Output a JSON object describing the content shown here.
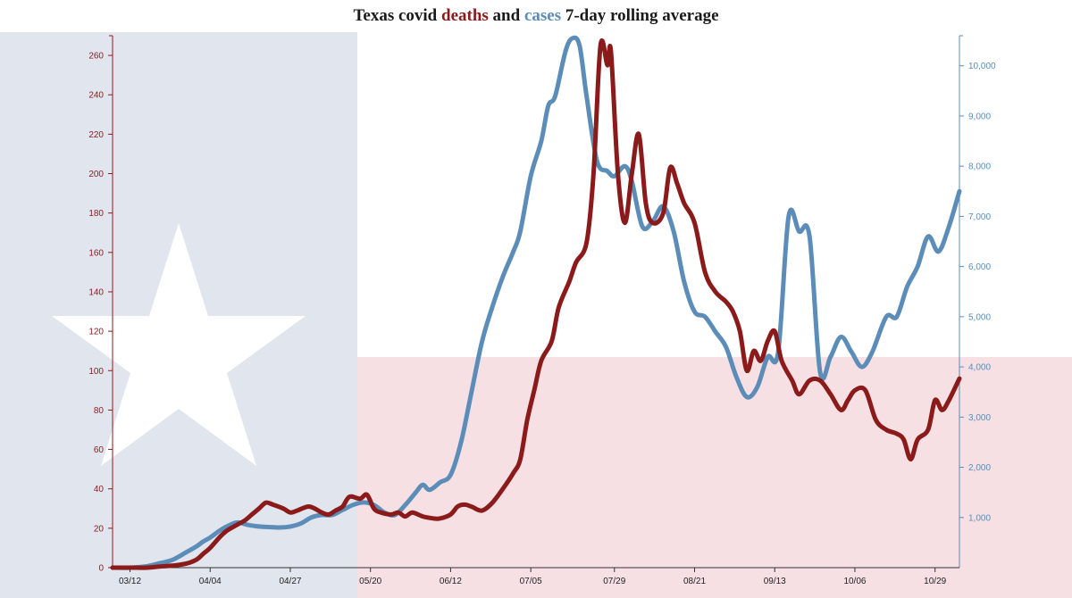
{
  "title": {
    "part1": "Texas covid ",
    "deaths_word": "deaths",
    "part2": " and ",
    "cases_word": "cases",
    "part3": " 7-day rolling average"
  },
  "colors": {
    "deaths": "#8b1a1a",
    "cases": "#5b8db8",
    "flag_blue": "#e1e5ee",
    "flag_red": "#f6e0e4",
    "flag_white": "#ffffff"
  },
  "chart_data": {
    "type": "line",
    "title": "Texas covid deaths and cases 7-day rolling average",
    "x_axis": {
      "type": "date",
      "range": [
        "2020-03-07",
        "2020-11-05"
      ],
      "ticks": [
        {
          "date": "2020-03-12",
          "label": "03/12"
        },
        {
          "date": "2020-04-04",
          "label": "04/04"
        },
        {
          "date": "2020-04-27",
          "label": "04/27"
        },
        {
          "date": "2020-05-20",
          "label": "05/20"
        },
        {
          "date": "2020-06-12",
          "label": "06/12"
        },
        {
          "date": "2020-07-05",
          "label": "07/05"
        },
        {
          "date": "2020-07-29",
          "label": "07/29"
        },
        {
          "date": "2020-08-21",
          "label": "08/21"
        },
        {
          "date": "2020-09-13",
          "label": "09/13"
        },
        {
          "date": "2020-10-06",
          "label": "10/06"
        },
        {
          "date": "2020-10-29",
          "label": "10/29"
        }
      ]
    },
    "y_left": {
      "range": [
        0,
        270
      ],
      "ticks": [
        {
          "value": 0,
          "label": "0"
        },
        {
          "value": 20,
          "label": "20"
        },
        {
          "value": 40,
          "label": "40"
        },
        {
          "value": 60,
          "label": "60"
        },
        {
          "value": 80,
          "label": "80"
        },
        {
          "value": 100,
          "label": "100"
        },
        {
          "value": 120,
          "label": "120"
        },
        {
          "value": 140,
          "label": "140"
        },
        {
          "value": 160,
          "label": "160"
        },
        {
          "value": 180,
          "label": "180"
        },
        {
          "value": 200,
          "label": "200"
        },
        {
          "value": 220,
          "label": "220"
        },
        {
          "value": 240,
          "label": "240"
        },
        {
          "value": 260,
          "label": "260"
        }
      ]
    },
    "y_right": {
      "range": [
        0,
        10600
      ],
      "ticks": [
        {
          "value": 1000,
          "label": "1,000"
        },
        {
          "value": 2000,
          "label": "2,000"
        },
        {
          "value": 3000,
          "label": "3,000"
        },
        {
          "value": 4000,
          "label": "4,000"
        },
        {
          "value": 5000,
          "label": "5,000"
        },
        {
          "value": 6000,
          "label": "6,000"
        },
        {
          "value": 7000,
          "label": "7,000"
        },
        {
          "value": 8000,
          "label": "8,000"
        },
        {
          "value": 9000,
          "label": "9,000"
        },
        {
          "value": 10000,
          "label": "10,000"
        }
      ]
    },
    "grid": false,
    "series": [
      {
        "name": "deaths",
        "axis": "left",
        "points": [
          [
            "2020-03-07",
            0
          ],
          [
            "2020-03-12",
            0
          ],
          [
            "2020-03-17",
            0
          ],
          [
            "2020-03-20",
            0.5
          ],
          [
            "2020-03-24",
            1
          ],
          [
            "2020-03-28",
            2
          ],
          [
            "2020-03-31",
            4
          ],
          [
            "2020-04-02",
            7
          ],
          [
            "2020-04-04",
            10
          ],
          [
            "2020-04-07",
            16
          ],
          [
            "2020-04-09",
            19
          ],
          [
            "2020-04-12",
            22
          ],
          [
            "2020-04-14",
            24
          ],
          [
            "2020-04-16",
            27
          ],
          [
            "2020-04-18",
            30
          ],
          [
            "2020-04-20",
            33
          ],
          [
            "2020-04-22",
            32
          ],
          [
            "2020-04-25",
            30
          ],
          [
            "2020-04-27",
            28
          ],
          [
            "2020-04-29",
            29
          ],
          [
            "2020-05-02",
            31
          ],
          [
            "2020-05-04",
            30
          ],
          [
            "2020-05-06",
            28
          ],
          [
            "2020-05-08",
            27
          ],
          [
            "2020-05-10",
            29
          ],
          [
            "2020-05-12",
            31
          ],
          [
            "2020-05-14",
            36
          ],
          [
            "2020-05-17",
            35
          ],
          [
            "2020-05-19",
            37
          ],
          [
            "2020-05-21",
            30
          ],
          [
            "2020-05-23",
            28
          ],
          [
            "2020-05-26",
            27
          ],
          [
            "2020-05-28",
            28
          ],
          [
            "2020-05-30",
            26
          ],
          [
            "2020-06-01",
            28
          ],
          [
            "2020-06-04",
            26
          ],
          [
            "2020-06-07",
            25
          ],
          [
            "2020-06-09",
            25
          ],
          [
            "2020-06-12",
            27
          ],
          [
            "2020-06-14",
            31
          ],
          [
            "2020-06-16",
            32
          ],
          [
            "2020-06-18",
            31
          ],
          [
            "2020-06-21",
            29
          ],
          [
            "2020-06-24",
            33
          ],
          [
            "2020-06-27",
            40
          ],
          [
            "2020-06-30",
            48
          ],
          [
            "2020-07-02",
            55
          ],
          [
            "2020-07-04",
            75
          ],
          [
            "2020-07-06",
            90
          ],
          [
            "2020-07-08",
            105
          ],
          [
            "2020-07-11",
            115
          ],
          [
            "2020-07-13",
            132
          ],
          [
            "2020-07-16",
            145
          ],
          [
            "2020-07-18",
            155
          ],
          [
            "2020-07-21",
            165
          ],
          [
            "2020-07-23",
            200
          ],
          [
            "2020-07-25",
            265
          ],
          [
            "2020-07-27",
            255
          ],
          [
            "2020-07-28",
            262
          ],
          [
            "2020-07-30",
            200
          ],
          [
            "2020-08-01",
            175
          ],
          [
            "2020-08-03",
            200
          ],
          [
            "2020-08-05",
            220
          ],
          [
            "2020-08-07",
            185
          ],
          [
            "2020-08-09",
            175
          ],
          [
            "2020-08-12",
            180
          ],
          [
            "2020-08-14",
            203
          ],
          [
            "2020-08-16",
            195
          ],
          [
            "2020-08-18",
            185
          ],
          [
            "2020-08-21",
            175
          ],
          [
            "2020-08-24",
            150
          ],
          [
            "2020-08-27",
            140
          ],
          [
            "2020-08-30",
            135
          ],
          [
            "2020-09-01",
            130
          ],
          [
            "2020-09-03",
            120
          ],
          [
            "2020-09-05",
            100
          ],
          [
            "2020-09-07",
            110
          ],
          [
            "2020-09-09",
            105
          ],
          [
            "2020-09-11",
            115
          ],
          [
            "2020-09-13",
            120
          ],
          [
            "2020-09-15",
            105
          ],
          [
            "2020-09-18",
            95
          ],
          [
            "2020-09-20",
            88
          ],
          [
            "2020-09-23",
            95
          ],
          [
            "2020-09-26",
            95
          ],
          [
            "2020-09-29",
            88
          ],
          [
            "2020-10-02",
            80
          ],
          [
            "2020-10-04",
            85
          ],
          [
            "2020-10-06",
            90
          ],
          [
            "2020-10-09",
            90
          ],
          [
            "2020-10-12",
            75
          ],
          [
            "2020-10-15",
            70
          ],
          [
            "2020-10-18",
            68
          ],
          [
            "2020-10-20",
            65
          ],
          [
            "2020-10-22",
            55
          ],
          [
            "2020-10-24",
            65
          ],
          [
            "2020-10-27",
            70
          ],
          [
            "2020-10-29",
            85
          ],
          [
            "2020-10-31",
            80
          ],
          [
            "2020-11-02",
            85
          ],
          [
            "2020-11-05",
            96
          ]
        ]
      },
      {
        "name": "cases",
        "axis": "right",
        "points": [
          [
            "2020-03-07",
            0
          ],
          [
            "2020-03-12",
            0
          ],
          [
            "2020-03-17",
            30
          ],
          [
            "2020-03-20",
            80
          ],
          [
            "2020-03-24",
            150
          ],
          [
            "2020-03-28",
            300
          ],
          [
            "2020-03-31",
            420
          ],
          [
            "2020-04-02",
            520
          ],
          [
            "2020-04-04",
            600
          ],
          [
            "2020-04-07",
            750
          ],
          [
            "2020-04-10",
            860
          ],
          [
            "2020-04-12",
            900
          ],
          [
            "2020-04-15",
            850
          ],
          [
            "2020-04-18",
            820
          ],
          [
            "2020-04-21",
            810
          ],
          [
            "2020-04-24",
            800
          ],
          [
            "2020-04-27",
            820
          ],
          [
            "2020-04-30",
            880
          ],
          [
            "2020-05-03",
            1000
          ],
          [
            "2020-05-06",
            1050
          ],
          [
            "2020-05-09",
            1050
          ],
          [
            "2020-05-12",
            1150
          ],
          [
            "2020-05-15",
            1250
          ],
          [
            "2020-05-18",
            1300
          ],
          [
            "2020-05-21",
            1250
          ],
          [
            "2020-05-24",
            1100
          ],
          [
            "2020-05-27",
            1050
          ],
          [
            "2020-05-30",
            1250
          ],
          [
            "2020-06-02",
            1500
          ],
          [
            "2020-06-04",
            1650
          ],
          [
            "2020-06-06",
            1550
          ],
          [
            "2020-06-09",
            1700
          ],
          [
            "2020-06-12",
            1850
          ],
          [
            "2020-06-15",
            2500
          ],
          [
            "2020-06-18",
            3500
          ],
          [
            "2020-06-21",
            4500
          ],
          [
            "2020-06-24",
            5200
          ],
          [
            "2020-06-27",
            5800
          ],
          [
            "2020-06-30",
            6300
          ],
          [
            "2020-07-02",
            6700
          ],
          [
            "2020-07-05",
            7800
          ],
          [
            "2020-07-08",
            8500
          ],
          [
            "2020-07-10",
            9200
          ],
          [
            "2020-07-12",
            9400
          ],
          [
            "2020-07-15",
            10300
          ],
          [
            "2020-07-17",
            10550
          ],
          [
            "2020-07-19",
            10400
          ],
          [
            "2020-07-21",
            9400
          ],
          [
            "2020-07-24",
            8100
          ],
          [
            "2020-07-27",
            7900
          ],
          [
            "2020-07-29",
            7800
          ],
          [
            "2020-08-01",
            8000
          ],
          [
            "2020-08-03",
            7700
          ],
          [
            "2020-08-06",
            6800
          ],
          [
            "2020-08-09",
            6900
          ],
          [
            "2020-08-12",
            7200
          ],
          [
            "2020-08-15",
            6700
          ],
          [
            "2020-08-18",
            5700
          ],
          [
            "2020-08-21",
            5100
          ],
          [
            "2020-08-24",
            5000
          ],
          [
            "2020-08-27",
            4700
          ],
          [
            "2020-08-30",
            4400
          ],
          [
            "2020-09-02",
            3800
          ],
          [
            "2020-09-05",
            3400
          ],
          [
            "2020-09-08",
            3600
          ],
          [
            "2020-09-11",
            4200
          ],
          [
            "2020-09-14",
            4300
          ],
          [
            "2020-09-17",
            7000
          ],
          [
            "2020-09-20",
            6700
          ],
          [
            "2020-09-23",
            6600
          ],
          [
            "2020-09-26",
            3900
          ],
          [
            "2020-09-29",
            4200
          ],
          [
            "2020-10-02",
            4600
          ],
          [
            "2020-10-05",
            4300
          ],
          [
            "2020-10-08",
            4000
          ],
          [
            "2020-10-11",
            4300
          ],
          [
            "2020-10-15",
            5000
          ],
          [
            "2020-10-18",
            5000
          ],
          [
            "2020-10-21",
            5600
          ],
          [
            "2020-10-24",
            6000
          ],
          [
            "2020-10-27",
            6600
          ],
          [
            "2020-10-30",
            6300
          ],
          [
            "2020-11-02",
            6800
          ],
          [
            "2020-11-05",
            7500
          ]
        ]
      }
    ]
  }
}
